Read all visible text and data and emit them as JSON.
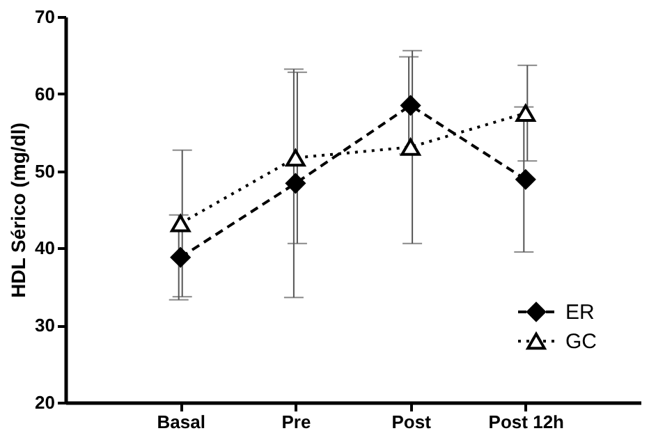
{
  "chart_data": {
    "type": "line",
    "ylabel": "HDL Sérico (mg/dl)",
    "categories": [
      "Basal",
      "Pre",
      "Post",
      "Post 12h"
    ],
    "ylim": [
      20,
      70
    ],
    "yticks": [
      20,
      30,
      40,
      50,
      60,
      70
    ],
    "grid": false,
    "legend": "bottom right",
    "series": [
      {
        "name": "ER",
        "color": "#000000",
        "marker": "diamond",
        "line_style": "dashed",
        "values": [
          38.8,
          48.4,
          58.5,
          48.9
        ],
        "errors": [
          5.5,
          14.8,
          6.3,
          9.4
        ]
      },
      {
        "name": "GC",
        "color": "#000000",
        "marker": "triangle",
        "line_style": "dotted",
        "values": [
          43.2,
          51.7,
          53.1,
          57.5
        ],
        "errors": [
          9.5,
          11.1,
          12.5,
          6.2
        ]
      }
    ]
  }
}
